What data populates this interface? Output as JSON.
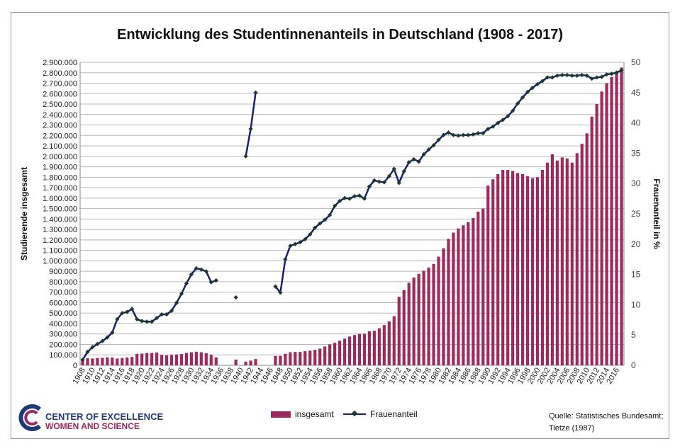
{
  "chart_data": {
    "type": "bar+line",
    "title": "Entwicklung des Studentinnenanteils in Deutschland (1908 - 2017)",
    "ylabel_left": "Studierende insgesamt",
    "ylabel_right": "Frauenanteil in %",
    "ylim_left": [
      0,
      2900000
    ],
    "ylim_right": [
      0,
      50
    ],
    "left_ticks": [
      "0",
      "100.000",
      "200.000",
      "300.000",
      "400.000",
      "500.000",
      "600.000",
      "700.000",
      "800.000",
      "900.000",
      "1.000.000",
      "1.100.000",
      "1.200.000",
      "1.300.000",
      "1.400.000",
      "1.500.000",
      "1.600.000",
      "1.700.000",
      "1.800.000",
      "1.900.000",
      "2.000.000",
      "2.100.000",
      "2.200.000",
      "2.300.000",
      "2.400.000",
      "2.500.000",
      "2.600.000",
      "2.700.000",
      "2.800.000",
      "2.900.000"
    ],
    "right_ticks": [
      "0",
      "5",
      "10",
      "15",
      "20",
      "25",
      "30",
      "35",
      "40",
      "45",
      "50"
    ],
    "grid": true,
    "legend_position": "bottom",
    "x_start": 1908,
    "x_end": 2017,
    "x_tick_step": 2,
    "series": [
      {
        "name": "insgesamt",
        "type": "bar",
        "axis": "left",
        "color": "#9c2a5e",
        "values": [
          55000,
          68000,
          65000,
          70000,
          72000,
          75000,
          75000,
          65000,
          70000,
          75000,
          80000,
          110000,
          112000,
          118000,
          118000,
          122000,
          100000,
          95000,
          100000,
          103000,
          108000,
          118000,
          125000,
          130000,
          125000,
          115000,
          100000,
          75000,
          null,
          null,
          null,
          55000,
          null,
          35000,
          45000,
          60000,
          null,
          null,
          null,
          90000,
          90000,
          110000,
          125000,
          128000,
          128000,
          135000,
          140000,
          148000,
          160000,
          180000,
          200000,
          215000,
          235000,
          255000,
          275000,
          290000,
          300000,
          302000,
          325000,
          330000,
          355000,
          385000,
          420000,
          470000,
          655000,
          720000,
          790000,
          840000,
          875000,
          905000,
          935000,
          970000,
          1040000,
          1120000,
          1210000,
          1270000,
          1310000,
          1340000,
          1370000,
          1410000,
          1470000,
          1500000,
          1720000,
          1780000,
          1830000,
          1870000,
          1870000,
          1860000,
          1840000,
          1830000,
          1810000,
          1790000,
          1800000,
          1870000,
          1940000,
          2020000,
          1960000,
          1990000,
          1980000,
          1940000,
          2030000,
          2120000,
          2220000,
          2380000,
          2500000,
          2620000,
          2700000,
          2760000,
          2810000,
          2850000
        ]
      },
      {
        "name": "Frauenanteil",
        "type": "line",
        "axis": "right",
        "color": "#1a1f6e",
        "values": [
          0.9,
          2.2,
          3.0,
          3.5,
          4.0,
          4.6,
          5.4,
          7.6,
          8.6,
          8.8,
          9.3,
          7.6,
          7.3,
          7.2,
          7.2,
          7.8,
          8.4,
          8.4,
          9.0,
          10.3,
          11.8,
          13.5,
          15.0,
          16.0,
          15.8,
          15.5,
          13.7,
          14.0,
          null,
          null,
          null,
          11.2,
          null,
          34.5,
          39.0,
          45.0,
          null,
          null,
          null,
          13.0,
          12.0,
          17.5,
          19.7,
          20.0,
          20.3,
          20.8,
          21.6,
          22.7,
          23.4,
          24.0,
          24.8,
          26.3,
          27.1,
          27.6,
          27.5,
          27.9,
          28.0,
          27.5,
          29.5,
          30.5,
          30.3,
          30.2,
          31.2,
          32.4,
          30.1,
          32.0,
          33.5,
          34.0,
          33.6,
          34.8,
          35.6,
          36.3,
          37.2,
          38.0,
          38.4,
          38.0,
          37.9,
          38.0,
          38.0,
          38.1,
          38.3,
          38.3,
          39.0,
          39.4,
          40.0,
          40.5,
          41.1,
          42.0,
          43.2,
          44.2,
          45.1,
          45.8,
          46.4,
          46.9,
          47.5,
          47.5,
          47.8,
          47.9,
          47.9,
          47.8,
          47.8,
          47.9,
          47.8,
          47.3,
          47.5,
          47.6,
          48.0,
          48.1,
          48.3,
          48.7
        ]
      }
    ]
  },
  "logo": {
    "line1": "CENTER OF EXCELLENCE",
    "line2": "WOMEN AND SCIENCE"
  },
  "source": {
    "line1": "Quelle: Statistisches Bundesamt;",
    "line2": "Tietze (1987)"
  }
}
